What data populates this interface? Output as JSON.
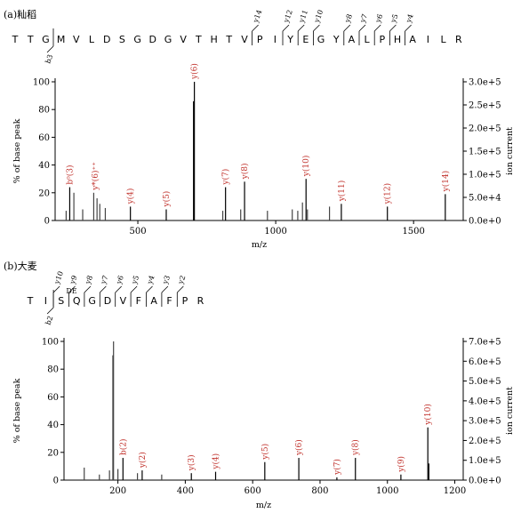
{
  "chart_data": [
    {
      "type": "bar",
      "panel_label": "(a)籼稻",
      "sequence": [
        "T",
        "T",
        "G",
        "M",
        "V",
        "L",
        "D",
        "S",
        "G",
        "D",
        "G",
        "V",
        "T",
        "H",
        "T",
        "V",
        "P",
        "I",
        "Y",
        "E",
        "G",
        "Y",
        "A",
        "L",
        "P",
        "H",
        "A",
        "I",
        "L",
        "R"
      ],
      "fragment_ions": [
        {
          "label": "b3",
          "after": 3,
          "side": "bottom"
        },
        {
          "label": "y14",
          "after": 16,
          "side": "top"
        },
        {
          "label": "y12",
          "after": 18,
          "side": "top"
        },
        {
          "label": "y11",
          "after": 19,
          "side": "top"
        },
        {
          "label": "y10",
          "after": 20,
          "side": "top"
        },
        {
          "label": "y8",
          "after": 22,
          "side": "top"
        },
        {
          "label": "y7",
          "after": 23,
          "side": "top"
        },
        {
          "label": "y6",
          "after": 24,
          "side": "top"
        },
        {
          "label": "y5",
          "after": 25,
          "side": "top"
        },
        {
          "label": "y4",
          "after": 26,
          "side": "top"
        }
      ],
      "xlabel": "m/z",
      "ylabel": "% of base peak",
      "y2label": "ion current",
      "xlim": [
        200,
        1680
      ],
      "ylim": [
        0,
        100
      ],
      "xticks": [
        500,
        1000,
        1500
      ],
      "yticks": [
        0,
        20,
        40,
        60,
        80,
        100
      ],
      "y2ticks": [
        "0.0e+0",
        "5.0e+4",
        "1.0e+5",
        "1.5e+5",
        "2.0e+5",
        "2.5e+5",
        "3.0e+5"
      ],
      "peaks": [
        {
          "mz": 240,
          "y": 7
        },
        {
          "mz": 253,
          "y": 24
        },
        {
          "mz": 268,
          "y": 20
        },
        {
          "mz": 300,
          "y": 8
        },
        {
          "mz": 340,
          "y": 20
        },
        {
          "mz": 352,
          "y": 16
        },
        {
          "mz": 362,
          "y": 12
        },
        {
          "mz": 382,
          "y": 9
        },
        {
          "mz": 473,
          "y": 10
        },
        {
          "mz": 603,
          "y": 8
        },
        {
          "mz": 702,
          "y": 86
        },
        {
          "mz": 705,
          "y": 100
        },
        {
          "mz": 808,
          "y": 7
        },
        {
          "mz": 818,
          "y": 24
        },
        {
          "mz": 873,
          "y": 8
        },
        {
          "mz": 887,
          "y": 28
        },
        {
          "mz": 970,
          "y": 7
        },
        {
          "mz": 1060,
          "y": 8
        },
        {
          "mz": 1080,
          "y": 7
        },
        {
          "mz": 1097,
          "y": 13
        },
        {
          "mz": 1110,
          "y": 30
        },
        {
          "mz": 1115,
          "y": 8
        },
        {
          "mz": 1195,
          "y": 10
        },
        {
          "mz": 1238,
          "y": 12
        },
        {
          "mz": 1405,
          "y": 10
        },
        {
          "mz": 1615,
          "y": 19
        }
      ],
      "annotations": [
        {
          "text": "b⁰(3)",
          "mz": 253,
          "y": 24
        },
        {
          "text": "y*(6)⁺⁺",
          "mz": 345,
          "y": 20
        },
        {
          "text": "y(4)",
          "mz": 473,
          "y": 10
        },
        {
          "text": "y(5)",
          "mz": 603,
          "y": 8
        },
        {
          "text": "y(6)",
          "mz": 705,
          "y": 100
        },
        {
          "text": "y(7)",
          "mz": 818,
          "y": 24
        },
        {
          "text": "y(8)",
          "mz": 887,
          "y": 28
        },
        {
          "text": "y(10)",
          "mz": 1110,
          "y": 30
        },
        {
          "text": "y(11)",
          "mz": 1238,
          "y": 12
        },
        {
          "text": "y(12)",
          "mz": 1405,
          "y": 10
        },
        {
          "text": "y(14)",
          "mz": 1615,
          "y": 19
        }
      ]
    },
    {
      "type": "bar",
      "panel_label": "(b)大麦",
      "sequence": [
        "T",
        "I",
        "S",
        "Q",
        "G",
        "D",
        "V",
        "F",
        "A",
        "F",
        "P",
        "R"
      ],
      "fragment_ions": [
        {
          "label": "b2",
          "after": 2,
          "side": "bottom"
        },
        {
          "label": "y10",
          "after": 2,
          "side": "top"
        },
        {
          "label": "y9",
          "after": 3,
          "side": "top"
        },
        {
          "label": "y8",
          "after": 4,
          "side": "top"
        },
        {
          "label": "y7",
          "after": 5,
          "side": "top"
        },
        {
          "label": "y6",
          "after": 6,
          "side": "top"
        },
        {
          "label": "y5",
          "after": 7,
          "side": "top"
        },
        {
          "label": "y4",
          "after": 8,
          "side": "top"
        },
        {
          "label": "y3",
          "after": 9,
          "side": "top"
        },
        {
          "label": "y2",
          "after": 10,
          "side": "top"
        }
      ],
      "modification_label": "DE",
      "xlabel": "m/z",
      "ylabel": "% of base peak",
      "y2label": "ion current",
      "xlim": [
        40,
        1225
      ],
      "ylim": [
        0,
        100
      ],
      "xticks": [
        200,
        400,
        600,
        800,
        1000,
        1200
      ],
      "yticks": [
        0,
        20,
        40,
        60,
        80,
        100
      ],
      "y2ticks": [
        "0.0e+0",
        "1.0e+5",
        "2.0e+5",
        "3.0e+5",
        "4.0e+5",
        "5.0e+5",
        "6.0e+5",
        "7.0e+5"
      ],
      "peaks": [
        {
          "mz": 100,
          "y": 9
        },
        {
          "mz": 145,
          "y": 4
        },
        {
          "mz": 175,
          "y": 7
        },
        {
          "mz": 185,
          "y": 90
        },
        {
          "mz": 187,
          "y": 100
        },
        {
          "mz": 200,
          "y": 8
        },
        {
          "mz": 215,
          "y": 16
        },
        {
          "mz": 258,
          "y": 5
        },
        {
          "mz": 272,
          "y": 7
        },
        {
          "mz": 330,
          "y": 4
        },
        {
          "mz": 418,
          "y": 5
        },
        {
          "mz": 490,
          "y": 6
        },
        {
          "mz": 636,
          "y": 13
        },
        {
          "mz": 737,
          "y": 16
        },
        {
          "mz": 850,
          "y": 2
        },
        {
          "mz": 905,
          "y": 16
        },
        {
          "mz": 1040,
          "y": 4
        },
        {
          "mz": 1120,
          "y": 38
        },
        {
          "mz": 1123,
          "y": 12
        }
      ],
      "annotations": [
        {
          "text": "b(2)",
          "mz": 215,
          "y": 16
        },
        {
          "text": "y(2)",
          "mz": 272,
          "y": 7
        },
        {
          "text": "y(3)",
          "mz": 418,
          "y": 5
        },
        {
          "text": "y(4)",
          "mz": 490,
          "y": 6
        },
        {
          "text": "y(5)",
          "mz": 636,
          "y": 13
        },
        {
          "text": "y(6)",
          "mz": 737,
          "y": 16
        },
        {
          "text": "y(7)",
          "mz": 850,
          "y": 2
        },
        {
          "text": "y(8)",
          "mz": 905,
          "y": 16
        },
        {
          "text": "y(9)",
          "mz": 1040,
          "y": 4
        },
        {
          "text": "y(10)",
          "mz": 1120,
          "y": 38
        }
      ]
    }
  ]
}
